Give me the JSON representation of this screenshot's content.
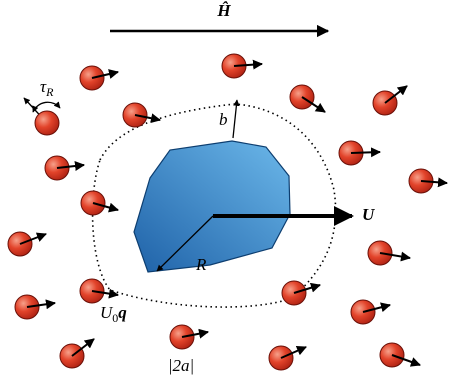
{
  "labels": {
    "field": "Ĥ",
    "shell_radius": "b",
    "velocity": "U",
    "body_radius": "R",
    "torque": {
      "base": "τ",
      "sub": "R"
    },
    "swim": {
      "base": "U",
      "sub": "0",
      "vec": "q"
    },
    "size": "|2a|"
  }
}
